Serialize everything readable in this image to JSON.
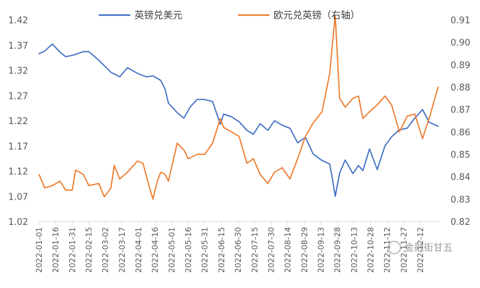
{
  "chart_data": {
    "type": "line",
    "title": "",
    "xlabel": "",
    "ylabel": "",
    "legend_position": "top",
    "grid": false,
    "x_ticks": [
      "2022-01-01",
      "2022-01-16",
      "2022-01-31",
      "2022-02-15",
      "2022-03-02",
      "2022-03-17",
      "2022-04-01",
      "2022-04-16",
      "2022-05-01",
      "2022-05-16",
      "2022-05-31",
      "2022-06-15",
      "2022-06-30",
      "2022-07-15",
      "2022-07-30",
      "2022-08-14",
      "2022-08-29",
      "2022-09-13",
      "2022-09-28",
      "2022-10-13",
      "2022-10-28",
      "2022-11-12",
      "2022-11-27",
      "2022-12-12"
    ],
    "left_axis": {
      "min": 1.02,
      "max": 1.42,
      "ticks": [
        "1.42",
        "1.37",
        "1.32",
        "1.27",
        "1.22",
        "1.17",
        "1.12",
        "1.07",
        "1.02"
      ]
    },
    "right_axis": {
      "min": 0.82,
      "max": 0.91,
      "ticks": [
        "0.91",
        "0.90",
        "0.89",
        "0.88",
        "0.87",
        "0.86",
        "0.85",
        "0.84",
        "0.83",
        "0.82"
      ]
    },
    "series": [
      {
        "name": "英镑兑美元",
        "axis": "left",
        "color": "#4472c4",
        "x": [
          "2022-01-01",
          "2022-01-06",
          "2022-01-13",
          "2022-01-20",
          "2022-01-25",
          "2022-02-01",
          "2022-02-10",
          "2022-02-15",
          "2022-02-24",
          "2022-03-02",
          "2022-03-07",
          "2022-03-15",
          "2022-03-22",
          "2022-03-31",
          "2022-04-08",
          "2022-04-14",
          "2022-04-21",
          "2022-04-25",
          "2022-04-28",
          "2022-05-06",
          "2022-05-12",
          "2022-05-18",
          "2022-05-24",
          "2022-05-31",
          "2022-06-07",
          "2022-06-14",
          "2022-06-17",
          "2022-06-24",
          "2022-07-01",
          "2022-07-08",
          "2022-07-14",
          "2022-07-20",
          "2022-07-27",
          "2022-08-02",
          "2022-08-09",
          "2022-08-16",
          "2022-08-23",
          "2022-08-30",
          "2022-09-06",
          "2022-09-14",
          "2022-09-21",
          "2022-09-23",
          "2022-09-26",
          "2022-09-30",
          "2022-10-05",
          "2022-10-12",
          "2022-10-17",
          "2022-10-21",
          "2022-10-27",
          "2022-11-03",
          "2022-11-10",
          "2022-11-16",
          "2022-11-23",
          "2022-11-30",
          "2022-12-07",
          "2022-12-14",
          "2022-12-20",
          "2022-12-28"
        ],
        "y": [
          1.353,
          1.358,
          1.372,
          1.356,
          1.347,
          1.35,
          1.357,
          1.357,
          1.34,
          1.327,
          1.316,
          1.307,
          1.325,
          1.314,
          1.307,
          1.309,
          1.3,
          1.283,
          1.255,
          1.236,
          1.225,
          1.248,
          1.262,
          1.262,
          1.258,
          1.213,
          1.233,
          1.228,
          1.218,
          1.201,
          1.193,
          1.214,
          1.201,
          1.22,
          1.211,
          1.205,
          1.176,
          1.187,
          1.154,
          1.141,
          1.134,
          1.11,
          1.07,
          1.116,
          1.142,
          1.115,
          1.131,
          1.121,
          1.164,
          1.123,
          1.17,
          1.188,
          1.202,
          1.205,
          1.225,
          1.242,
          1.217,
          1.209
        ]
      },
      {
        "name": "欧元兑英镑（右轴）",
        "axis": "right",
        "color": "#ed7d31",
        "x": [
          "2022-01-01",
          "2022-01-06",
          "2022-01-13",
          "2022-01-20",
          "2022-01-25",
          "2022-01-31",
          "2022-02-03",
          "2022-02-10",
          "2022-02-15",
          "2022-02-24",
          "2022-03-01",
          "2022-03-07",
          "2022-03-10",
          "2022-03-15",
          "2022-03-22",
          "2022-03-31",
          "2022-04-05",
          "2022-04-11",
          "2022-04-14",
          "2022-04-18",
          "2022-04-21",
          "2022-04-25",
          "2022-04-28",
          "2022-05-06",
          "2022-05-12",
          "2022-05-16",
          "2022-05-24",
          "2022-05-31",
          "2022-06-07",
          "2022-06-14",
          "2022-06-17",
          "2022-06-24",
          "2022-07-01",
          "2022-07-08",
          "2022-07-14",
          "2022-07-20",
          "2022-07-27",
          "2022-08-02",
          "2022-08-09",
          "2022-08-16",
          "2022-08-23",
          "2022-08-30",
          "2022-09-06",
          "2022-09-14",
          "2022-09-21",
          "2022-09-23",
          "2022-09-26",
          "2022-09-30",
          "2022-10-05",
          "2022-10-12",
          "2022-10-17",
          "2022-10-21",
          "2022-10-27",
          "2022-11-03",
          "2022-11-10",
          "2022-11-16",
          "2022-11-23",
          "2022-11-30",
          "2022-12-07",
          "2022-12-14",
          "2022-12-20",
          "2022-12-28"
        ],
        "y": [
          0.841,
          0.835,
          0.836,
          0.838,
          0.834,
          0.834,
          0.843,
          0.841,
          0.836,
          0.837,
          0.831,
          0.835,
          0.845,
          0.839,
          0.842,
          0.847,
          0.846,
          0.835,
          0.83,
          0.838,
          0.842,
          0.841,
          0.838,
          0.855,
          0.852,
          0.848,
          0.85,
          0.85,
          0.855,
          0.866,
          0.862,
          0.86,
          0.858,
          0.846,
          0.848,
          0.841,
          0.837,
          0.842,
          0.844,
          0.839,
          0.848,
          0.858,
          0.864,
          0.869,
          0.886,
          0.897,
          0.912,
          0.875,
          0.871,
          0.875,
          0.876,
          0.866,
          0.869,
          0.872,
          0.876,
          0.872,
          0.86,
          0.867,
          0.868,
          0.857,
          0.866,
          0.88
        ]
      }
    ]
  },
  "watermark": "金融街甘五"
}
